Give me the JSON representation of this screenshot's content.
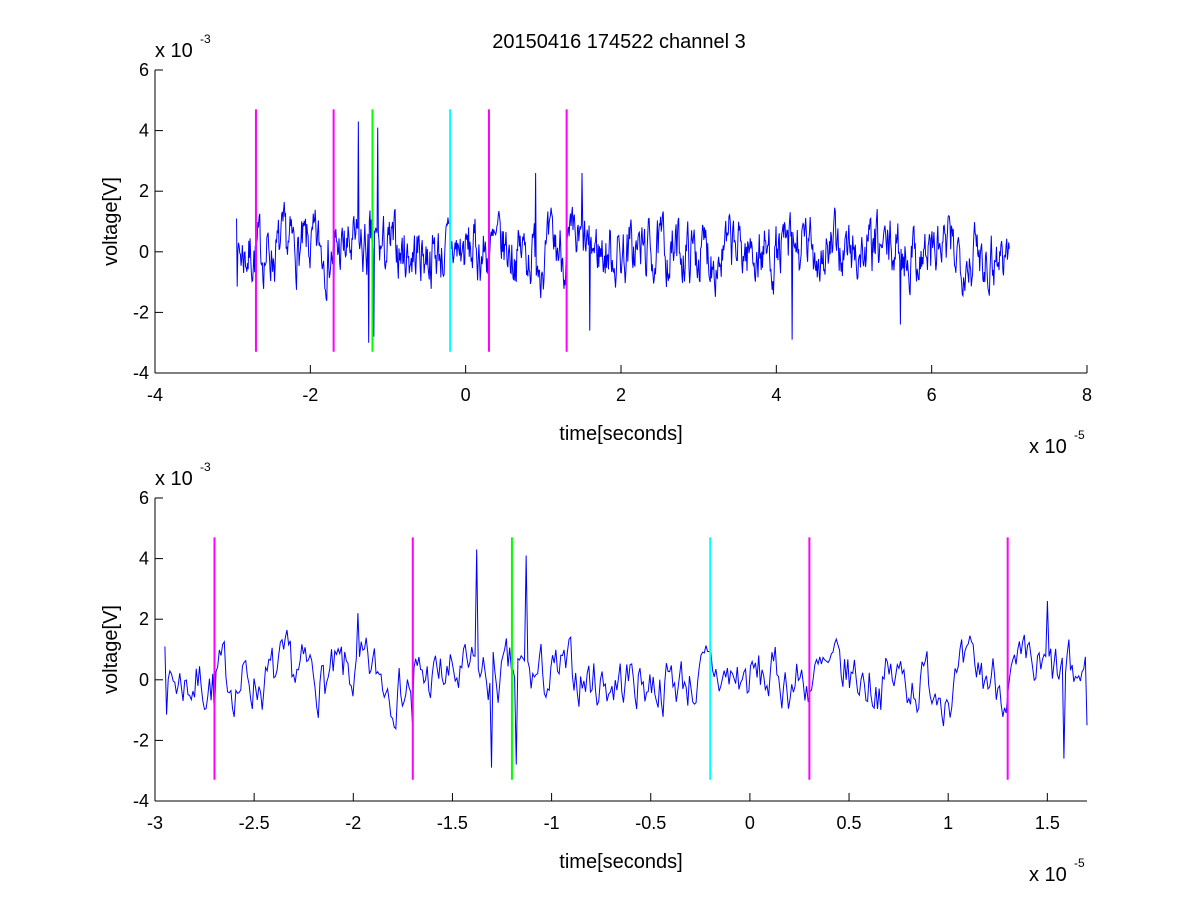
{
  "figure": {
    "title": "20150416 174522 channel 3",
    "background": "#ffffff"
  },
  "chart_data": [
    {
      "type": "line",
      "xlabel": "time[seconds]",
      "ylabel": "voltage[V]",
      "x_multiplier": "x 10",
      "x_exponent": "-5",
      "y_multiplier": "x 10",
      "y_exponent": "-3",
      "xlim": [
        -4,
        8
      ],
      "ylim": [
        -4,
        6
      ],
      "xticks": [
        -4,
        -2,
        0,
        2,
        4,
        6,
        8
      ],
      "xtick_labels": [
        "-4",
        "-2",
        "0",
        "2",
        "4",
        "6",
        "8"
      ],
      "yticks": [
        -4,
        -2,
        0,
        2,
        4,
        6
      ],
      "ytick_labels": [
        "-4",
        "-2",
        "0",
        "2",
        "4",
        "6"
      ],
      "grid": false,
      "signal": {
        "name": "voltage",
        "color": "#0000ff",
        "x_start": -2.95,
        "x_end": 7.0,
        "points": 1200,
        "seed": 7,
        "landmarks": [
          {
            "x": -2.95,
            "y": 1.1
          },
          {
            "x": -2.7,
            "y": -1.2
          },
          {
            "x": -1.7,
            "y": -1.4
          },
          {
            "x": -1.38,
            "y": 4.3
          },
          {
            "x": -1.25,
            "y": -3.0
          },
          {
            "x": -1.18,
            "y": -2.8
          },
          {
            "x": -1.13,
            "y": 4.1
          },
          {
            "x": 0.9,
            "y": 2.6
          },
          {
            "x": 1.5,
            "y": 2.6
          },
          {
            "x": 1.6,
            "y": -2.6
          },
          {
            "x": 4.2,
            "y": -2.9
          },
          {
            "x": 5.6,
            "y": -2.4
          },
          {
            "x": 7.0,
            "y": 0.1
          }
        ],
        "ymin": -3.0,
        "ymax": 4.3
      },
      "markers": [
        {
          "x": -2.7,
          "color": "#ff00ff",
          "ymin": -3.3,
          "ymax": 4.7
        },
        {
          "x": -1.7,
          "color": "#ff00ff",
          "ymin": -3.3,
          "ymax": 4.7
        },
        {
          "x": -1.2,
          "color": "#00ff00",
          "ymin": -3.3,
          "ymax": 4.7
        },
        {
          "x": -0.2,
          "color": "#00ffff",
          "ymin": -3.3,
          "ymax": 4.7
        },
        {
          "x": 0.3,
          "color": "#ff00ff",
          "ymin": -3.3,
          "ymax": 4.7
        },
        {
          "x": 1.3,
          "color": "#ff00ff",
          "ymin": -3.3,
          "ymax": 4.7
        }
      ]
    },
    {
      "type": "line",
      "xlabel": "time[seconds]",
      "ylabel": "voltage[V]",
      "x_multiplier": "x 10",
      "x_exponent": "-5",
      "y_multiplier": "x 10",
      "y_exponent": "-3",
      "xlim": [
        -3,
        1.7
      ],
      "ylim": [
        -4,
        6
      ],
      "xticks": [
        -3,
        -2.5,
        -2,
        -1.5,
        -1,
        -0.5,
        0,
        0.5,
        1,
        1.5
      ],
      "xtick_labels": [
        "-3",
        "-2.5",
        "-2",
        "-1.5",
        "-1",
        "-0.5",
        "0",
        "0.5",
        "1",
        "1.5"
      ],
      "yticks": [
        -4,
        -2,
        0,
        2,
        4,
        6
      ],
      "ytick_labels": [
        "-4",
        "-2",
        "0",
        "2",
        "4",
        "6"
      ],
      "grid": false,
      "signal": {
        "name": "voltage",
        "color": "#0000ff",
        "x_start": -2.95,
        "x_end": 1.7,
        "points": 560,
        "seed": 7,
        "landmarks": [
          {
            "x": -2.95,
            "y": 1.1
          },
          {
            "x": -2.7,
            "y": -1.2
          },
          {
            "x": -1.98,
            "y": 2.2
          },
          {
            "x": -1.7,
            "y": -1.4
          },
          {
            "x": -1.38,
            "y": 4.3
          },
          {
            "x": -1.3,
            "y": -2.9
          },
          {
            "x": -1.18,
            "y": -2.8
          },
          {
            "x": -1.13,
            "y": 4.1
          },
          {
            "x": 1.5,
            "y": 2.6
          },
          {
            "x": 1.58,
            "y": -2.6
          },
          {
            "x": 1.7,
            "y": -1.5
          }
        ],
        "ymin": -3.0,
        "ymax": 4.3
      },
      "markers": [
        {
          "x": -2.7,
          "color": "#ff00ff",
          "ymin": -3.3,
          "ymax": 4.7
        },
        {
          "x": -1.7,
          "color": "#ff00ff",
          "ymin": -3.3,
          "ymax": 4.7
        },
        {
          "x": -1.2,
          "color": "#00ff00",
          "ymin": -3.3,
          "ymax": 4.7
        },
        {
          "x": -0.2,
          "color": "#00ffff",
          "ymin": -3.3,
          "ymax": 4.7
        },
        {
          "x": 0.3,
          "color": "#ff00ff",
          "ymin": -3.3,
          "ymax": 4.7
        },
        {
          "x": 1.3,
          "color": "#ff00ff",
          "ymin": -3.3,
          "ymax": 4.7
        }
      ]
    }
  ]
}
